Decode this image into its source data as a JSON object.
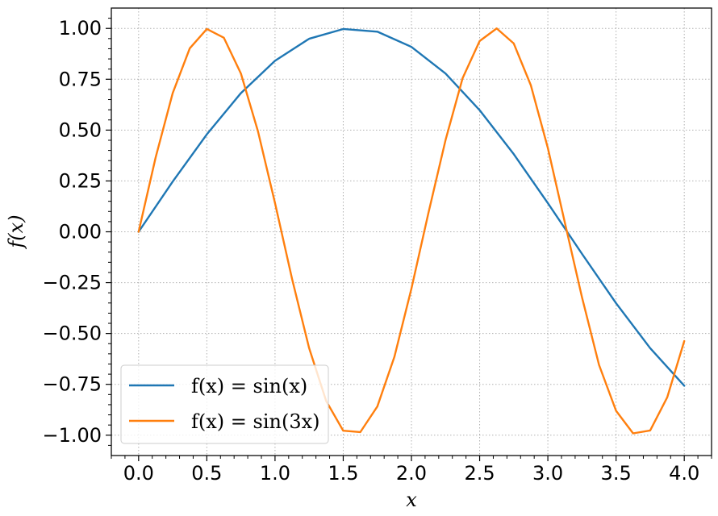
{
  "chart_data": {
    "type": "line",
    "xlabel": "x",
    "ylabel": "f(x)",
    "xlim": [
      -0.2,
      4.2
    ],
    "ylim": [
      -1.1,
      1.1
    ],
    "x_ticks": [
      0.0,
      0.5,
      1.0,
      1.5,
      2.0,
      2.5,
      3.0,
      3.5,
      4.0
    ],
    "x_tick_labels": [
      "0.0",
      "0.5",
      "1.0",
      "1.5",
      "2.0",
      "2.5",
      "3.0",
      "3.5",
      "4.0"
    ],
    "y_ticks": [
      1.0,
      0.75,
      0.5,
      0.25,
      0.0,
      -0.25,
      -0.5,
      -0.75,
      -1.0
    ],
    "y_tick_labels": [
      "1.00",
      "0.75",
      "0.50",
      "0.25",
      "0.00",
      "−0.25",
      "−0.50",
      "−0.75",
      "−1.00"
    ],
    "grid": true,
    "minor_ticks": true,
    "legend_position": "lower-left",
    "series": [
      {
        "name": "f(x) = sin(x)",
        "color": "#1f77b4",
        "x": [
          0.0,
          0.25,
          0.5,
          0.75,
          1.0,
          1.25,
          1.5,
          1.75,
          2.0,
          2.25,
          2.5,
          2.75,
          3.0,
          3.25,
          3.5,
          3.75,
          4.0
        ],
        "y": [
          0.0,
          0.247,
          0.479,
          0.682,
          0.841,
          0.949,
          0.997,
          0.984,
          0.909,
          0.778,
          0.598,
          0.382,
          0.141,
          -0.108,
          -0.351,
          -0.572,
          -0.757
        ]
      },
      {
        "name": "f(x) = sin(3x)",
        "color": "#ff7f0e",
        "x": [
          0.0,
          0.125,
          0.25,
          0.375,
          0.5,
          0.625,
          0.75,
          0.875,
          1.0,
          1.125,
          1.25,
          1.375,
          1.5,
          1.625,
          1.75,
          1.875,
          2.0,
          2.125,
          2.25,
          2.375,
          2.5,
          2.625,
          2.75,
          2.875,
          3.0,
          3.125,
          3.25,
          3.375,
          3.5,
          3.625,
          3.75,
          3.875,
          4.0
        ],
        "y": [
          0.0,
          0.366,
          0.682,
          0.902,
          0.997,
          0.954,
          0.778,
          0.494,
          0.141,
          -0.232,
          -0.572,
          -0.832,
          -0.978,
          -0.985,
          -0.859,
          -0.615,
          -0.279,
          0.094,
          0.451,
          0.755,
          0.938,
          1.0,
          0.926,
          0.721,
          0.412,
          0.044,
          -0.321,
          -0.654,
          -0.88,
          -0.991,
          -0.977,
          -0.814,
          -0.537
        ]
      }
    ]
  }
}
